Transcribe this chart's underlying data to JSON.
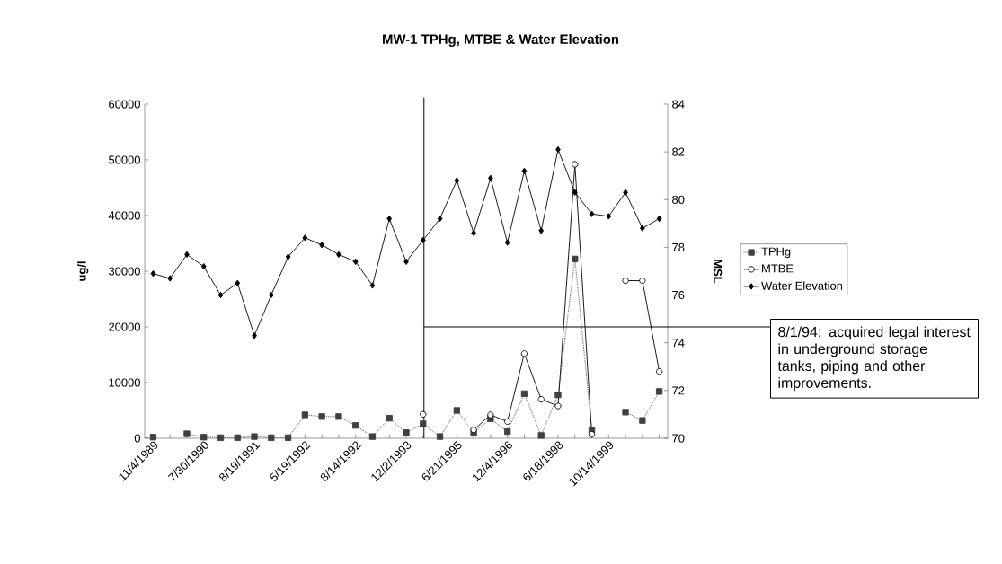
{
  "chart_data": {
    "type": "line",
    "title": "MW-1 TPHg, MTBE & Water Elevation",
    "ylabel": "ug/l",
    "y2label": "MSL",
    "categories": [
      "11/4/1989",
      null,
      null,
      "7/30/1990",
      null,
      null,
      "8/19/1991",
      null,
      null,
      "5/19/1992",
      null,
      null,
      "8/14/1992",
      null,
      null,
      "12/2/1993",
      null,
      null,
      "6/21/1995",
      null,
      null,
      "12/4/1996",
      null,
      null,
      "6/18/1998",
      null,
      null,
      "10/14/1999",
      null,
      null,
      null
    ],
    "series": [
      {
        "name": "TPHg",
        "color": "#404040",
        "marker": "square",
        "line_style": "dotted",
        "values": [
          200,
          null,
          800,
          200,
          100,
          100,
          300,
          100,
          100,
          4200,
          3900,
          3900,
          2300,
          300,
          3600,
          1000,
          2600,
          300,
          5000,
          1000,
          3500,
          1200,
          8000,
          500,
          7800,
          32200,
          1500,
          null,
          4700,
          3200,
          8400
        ]
      },
      {
        "name": "MTBE",
        "color": "#000000",
        "marker": "circle",
        "line_style": "solid",
        "values": [
          null,
          null,
          null,
          null,
          null,
          null,
          null,
          null,
          null,
          null,
          null,
          null,
          null,
          null,
          null,
          null,
          4300,
          null,
          null,
          1500,
          4200,
          3000,
          15200,
          7000,
          5800,
          49200,
          700,
          null,
          28300,
          28300,
          12000
        ]
      },
      {
        "name": "Water Elevation",
        "color": "#000000",
        "marker": "diamond",
        "line_style": "solid",
        "axis": "y2",
        "values": [
          76.9,
          76.7,
          77.7,
          77.2,
          76.0,
          76.5,
          74.3,
          76.0,
          77.6,
          78.4,
          78.1,
          77.7,
          77.4,
          76.4,
          79.2,
          77.4,
          78.3,
          79.2,
          80.8,
          78.6,
          80.9,
          78.2,
          81.2,
          78.7,
          82.1,
          80.3,
          79.4,
          79.3,
          80.3,
          78.8,
          79.2
        ]
      }
    ],
    "ylim": [
      0,
      60000
    ],
    "yticks": [
      0,
      10000,
      20000,
      30000,
      40000,
      50000,
      60000
    ],
    "y2lim": [
      70,
      84
    ],
    "y2ticks": [
      70,
      72,
      74,
      76,
      78,
      80,
      82,
      84
    ],
    "ref_lines": [
      {
        "axis": "y",
        "value": 20000
      }
    ],
    "annotations": [
      "8/1/94: acquired legal interest in underground storage tanks, piping and other improvements."
    ],
    "legend": "right"
  }
}
